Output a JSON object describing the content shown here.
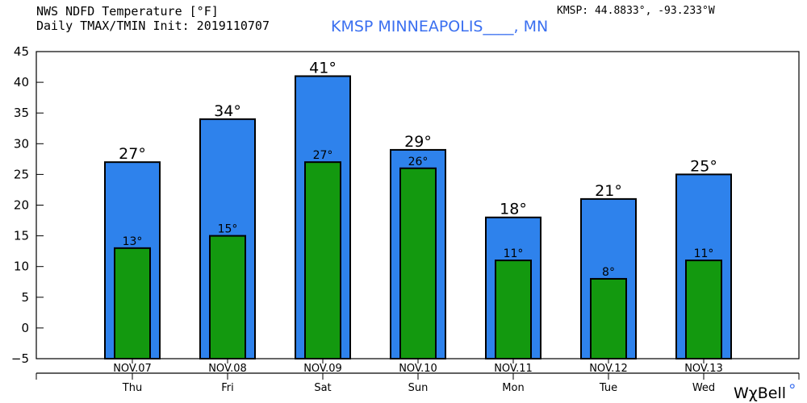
{
  "header": {
    "line1": "NWS NDFD Temperature [°F]",
    "line2": "Daily TMAX/TMIN Init: 2019110707",
    "station": "KMSP MINNEAPOLIS____, MN",
    "coords": "KMSP: 44.8833°, -93.233°W"
  },
  "brand": {
    "text": "WχBell",
    "mark": "°"
  },
  "colors": {
    "max_bar": "#2e82ec",
    "min_bar": "#13990f",
    "bar_edge": "#000000",
    "station_text": "#3a6ff0"
  },
  "chart_data": {
    "type": "bar",
    "title": "NWS NDFD Temperature [°F]",
    "categories": [
      "NOV.07",
      "NOV.08",
      "NOV.09",
      "NOV.10",
      "NOV.11",
      "NOV.12",
      "NOV.13"
    ],
    "weekdays": [
      "Thu",
      "Fri",
      "Sat",
      "Sun",
      "Mon",
      "Tue",
      "Wed"
    ],
    "series": [
      {
        "name": "TMAX",
        "values": [
          27,
          34,
          41,
          29,
          18,
          21,
          25
        ]
      },
      {
        "name": "TMIN",
        "values": [
          13,
          15,
          27,
          26,
          11,
          8,
          11
        ]
      }
    ],
    "max_labels": [
      "27°",
      "34°",
      "41°",
      "29°",
      "18°",
      "21°",
      "25°"
    ],
    "min_labels": [
      "13°",
      "15°",
      "27°",
      "26°",
      "11°",
      "8°",
      "11°"
    ],
    "y_ticks": [
      "45",
      "40",
      "35",
      "30",
      "25",
      "20",
      "15",
      "10",
      "5",
      "0",
      "−5"
    ],
    "ylim": [
      -5,
      45
    ],
    "xlabel": "",
    "ylabel": "",
    "grid": false,
    "legend": "none"
  }
}
